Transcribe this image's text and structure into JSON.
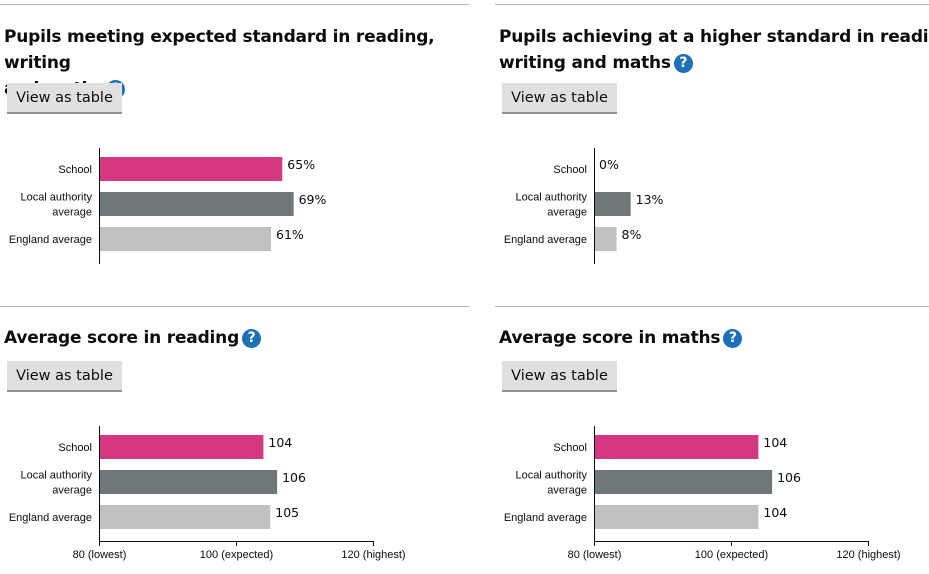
{
  "panels": [
    {
      "heading_line1": "Pupils meeting expected standard in reading, writing",
      "heading_line2": "and maths",
      "button_label": "View as table",
      "help_icon": "question-circle-icon"
    },
    {
      "heading_line1": "Pupils achieving at a higher standard in reading,",
      "heading_line2": "writing and maths",
      "button_label": "View as table",
      "help_icon": "question-circle-icon"
    },
    {
      "heading_line1": "Average score in reading",
      "heading_line2": "",
      "button_label": "View as table",
      "help_icon": "question-circle-icon"
    },
    {
      "heading_line1": "Average score in maths",
      "heading_line2": "",
      "button_label": "View as table",
      "help_icon": "question-circle-icon"
    }
  ],
  "colors": {
    "school": "#d53880",
    "local_authority": "#6f777b",
    "england": "#bfc1c3",
    "help_icon": "#1d70b8"
  },
  "chart_data": [
    {
      "type": "bar",
      "orientation": "horizontal",
      "categories": [
        [
          "School"
        ],
        [
          "Local authority",
          "average"
        ],
        [
          "England average"
        ]
      ],
      "values": [
        65,
        69,
        61
      ],
      "value_labels": [
        "65%",
        "69%",
        "61%"
      ],
      "xlim": [
        0,
        100
      ]
    },
    {
      "type": "bar",
      "orientation": "horizontal",
      "categories": [
        [
          "School"
        ],
        [
          "Local authority",
          "average"
        ],
        [
          "England average"
        ]
      ],
      "values": [
        0,
        13,
        8
      ],
      "value_labels": [
        "0%",
        "13%",
        "8%"
      ],
      "xlim": [
        0,
        100
      ]
    },
    {
      "type": "bar",
      "orientation": "horizontal",
      "categories": [
        [
          "School"
        ],
        [
          "Local authority",
          "average"
        ],
        [
          "England average"
        ]
      ],
      "values": [
        104,
        106,
        105
      ],
      "value_labels": [
        "104",
        "106",
        "105"
      ],
      "xlim": [
        80,
        120
      ],
      "xticks": [
        80,
        100,
        120
      ],
      "xtick_labels": [
        "80 (lowest)",
        "100 (expected)",
        "120 (highest)"
      ]
    },
    {
      "type": "bar",
      "orientation": "horizontal",
      "categories": [
        [
          "School"
        ],
        [
          "Local authority",
          "average"
        ],
        [
          "England average"
        ]
      ],
      "values": [
        104,
        106,
        104
      ],
      "value_labels": [
        "104",
        "106",
        "104"
      ],
      "xlim": [
        80,
        120
      ],
      "xticks": [
        80,
        100,
        120
      ],
      "xtick_labels": [
        "80 (lowest)",
        "100 (expected)",
        "120 (highest)"
      ]
    }
  ]
}
